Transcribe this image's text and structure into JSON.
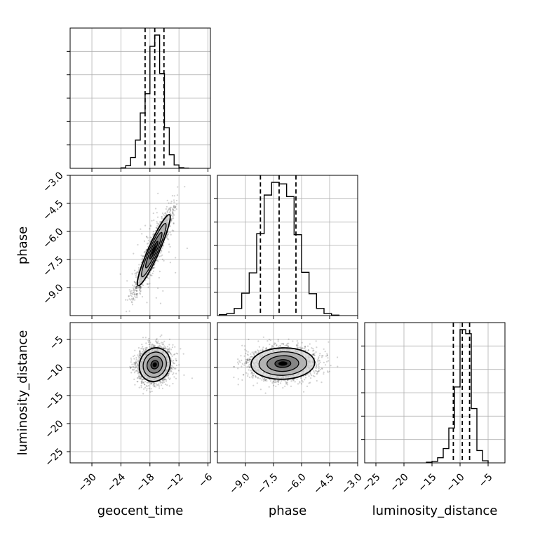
{
  "chart_data": {
    "type": "corner",
    "parameters": [
      "geocent_time",
      "phase",
      "luminosity_distance"
    ],
    "axis_labels": {
      "x": [
        "geocent_time",
        "phase",
        "luminosity_distance"
      ],
      "y_row2": "phase",
      "y_row3": "luminosity_distance"
    },
    "grid": true,
    "ranges": {
      "geocent_time": [
        -34.5,
        -5.5
      ],
      "phase": [
        -10.5,
        -3.0
      ],
      "luminosity_distance": [
        -27,
        -2
      ]
    },
    "ticks": {
      "geocent_time": [
        -30,
        -24,
        -18,
        -12,
        -6
      ],
      "phase_x": [
        -9.0,
        -7.5,
        -6.0,
        -4.5,
        -3.0
      ],
      "phase_y": [
        -3.0,
        -4.5,
        -6.0,
        -7.5,
        -9.0
      ],
      "luminosity_distance_x": [
        -25,
        -20,
        -15,
        -10,
        -5
      ],
      "luminosity_distance_y": [
        -5,
        -10,
        -15,
        -20,
        -25
      ]
    },
    "tick_labels": {
      "geocent_time": [
        "−30",
        "−24",
        "−18",
        "−12",
        "−6"
      ],
      "phase_x": [
        "−9.0",
        "−7.5",
        "−6.0",
        "−4.5",
        "−3.0"
      ],
      "phase_y": [
        "−3.0",
        "−4.5",
        "−6.0",
        "−7.5",
        "−9.0"
      ],
      "luminosity_distance_x": [
        "−25",
        "−20",
        "−15",
        "−10",
        "−5"
      ],
      "luminosity_distance_y": [
        "−5",
        "−10",
        "−15",
        "−20",
        "−25"
      ]
    },
    "marginals": {
      "geocent_time": {
        "bin_edges": [
          -24,
          -23,
          -22,
          -21,
          -20,
          -19,
          -18,
          -17,
          -16,
          -15,
          -14,
          -13,
          -12,
          -11,
          -10
        ],
        "counts": [
          2,
          12,
          48,
          125,
          245,
          330,
          540,
          590,
          420,
          180,
          60,
          15,
          3,
          1
        ],
        "quantiles": [
          -19.0,
          -17.0,
          -15.1
        ]
      },
      "phase": {
        "bin_edges": [
          -10.4,
          -10.0,
          -9.6,
          -9.2,
          -8.8,
          -8.4,
          -8.0,
          -7.6,
          -7.2,
          -6.8,
          -6.4,
          -6.0,
          -5.6,
          -5.2,
          -4.8,
          -4.4,
          -4.0
        ],
        "counts": [
          4,
          8,
          28,
          88,
          168,
          322,
          474,
          524,
          518,
          468,
          318,
          170,
          86,
          28,
          8,
          2
        ],
        "quantiles": [
          -8.2,
          -7.2,
          -6.3
        ]
      },
      "luminosity_distance": {
        "bin_edges": [
          -16,
          -15,
          -14,
          -13,
          -12,
          -11,
          -10,
          -9,
          -8,
          -7,
          -6,
          -5
        ],
        "counts": [
          3,
          7,
          25,
          70,
          170,
          370,
          650,
          630,
          265,
          60,
          10
        ],
        "quantiles": [
          -11.2,
          -9.6,
          -8.3
        ]
      }
    },
    "joint_distributions": [
      {
        "x_param": "geocent_time",
        "y_param": "phase",
        "mean": [
          -17.2,
          -7.0
        ],
        "std": [
          1.7,
          0.95
        ],
        "correlation": 0.93,
        "n_samples": 2600
      },
      {
        "x_param": "geocent_time",
        "y_param": "luminosity_distance",
        "mean": [
          -17.0,
          -9.5
        ],
        "std": [
          1.6,
          1.5
        ],
        "correlation": 0.1,
        "n_samples": 2600
      },
      {
        "x_param": "phase",
        "y_param": "luminosity_distance",
        "mean": [
          -7.0,
          -9.3
        ],
        "std": [
          0.85,
          1.4
        ],
        "correlation": 0.05,
        "n_samples": 2600
      }
    ],
    "contour_sigma_levels": [
      0.5,
      1.0,
      1.5,
      2.0
    ],
    "colors": {
      "hist": "#000000",
      "quantile": "#000000",
      "grid": "#b0b0b0",
      "points": "#000000",
      "density_fill": [
        "#ffffff",
        "#d8d8d8",
        "#b0b0b0",
        "#808080",
        "#404040",
        "#000000"
      ]
    }
  }
}
